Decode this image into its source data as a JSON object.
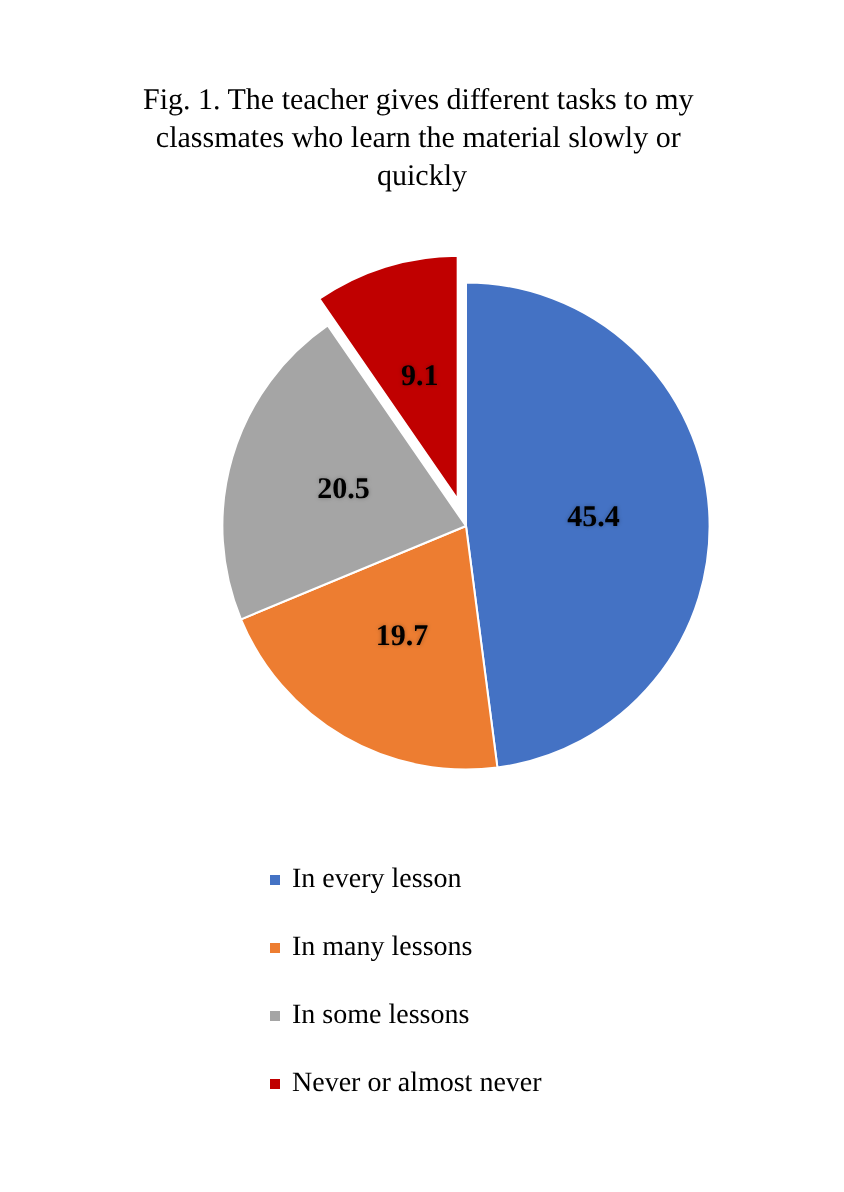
{
  "chart_data": {
    "type": "pie",
    "title": "Fig. 1. The teacher gives different tasks to my classmates who learn the material slowly or quickly",
    "categories": [
      "In every lesson",
      "In many lessons",
      "In some lessons",
      "Never or almost never"
    ],
    "values": [
      45.4,
      19.7,
      20.5,
      9.1
    ],
    "colors": [
      "#4472c4",
      "#ed7d31",
      "#a5a5a5",
      "#c00000"
    ],
    "data_labels": true,
    "legend": "bottom"
  }
}
